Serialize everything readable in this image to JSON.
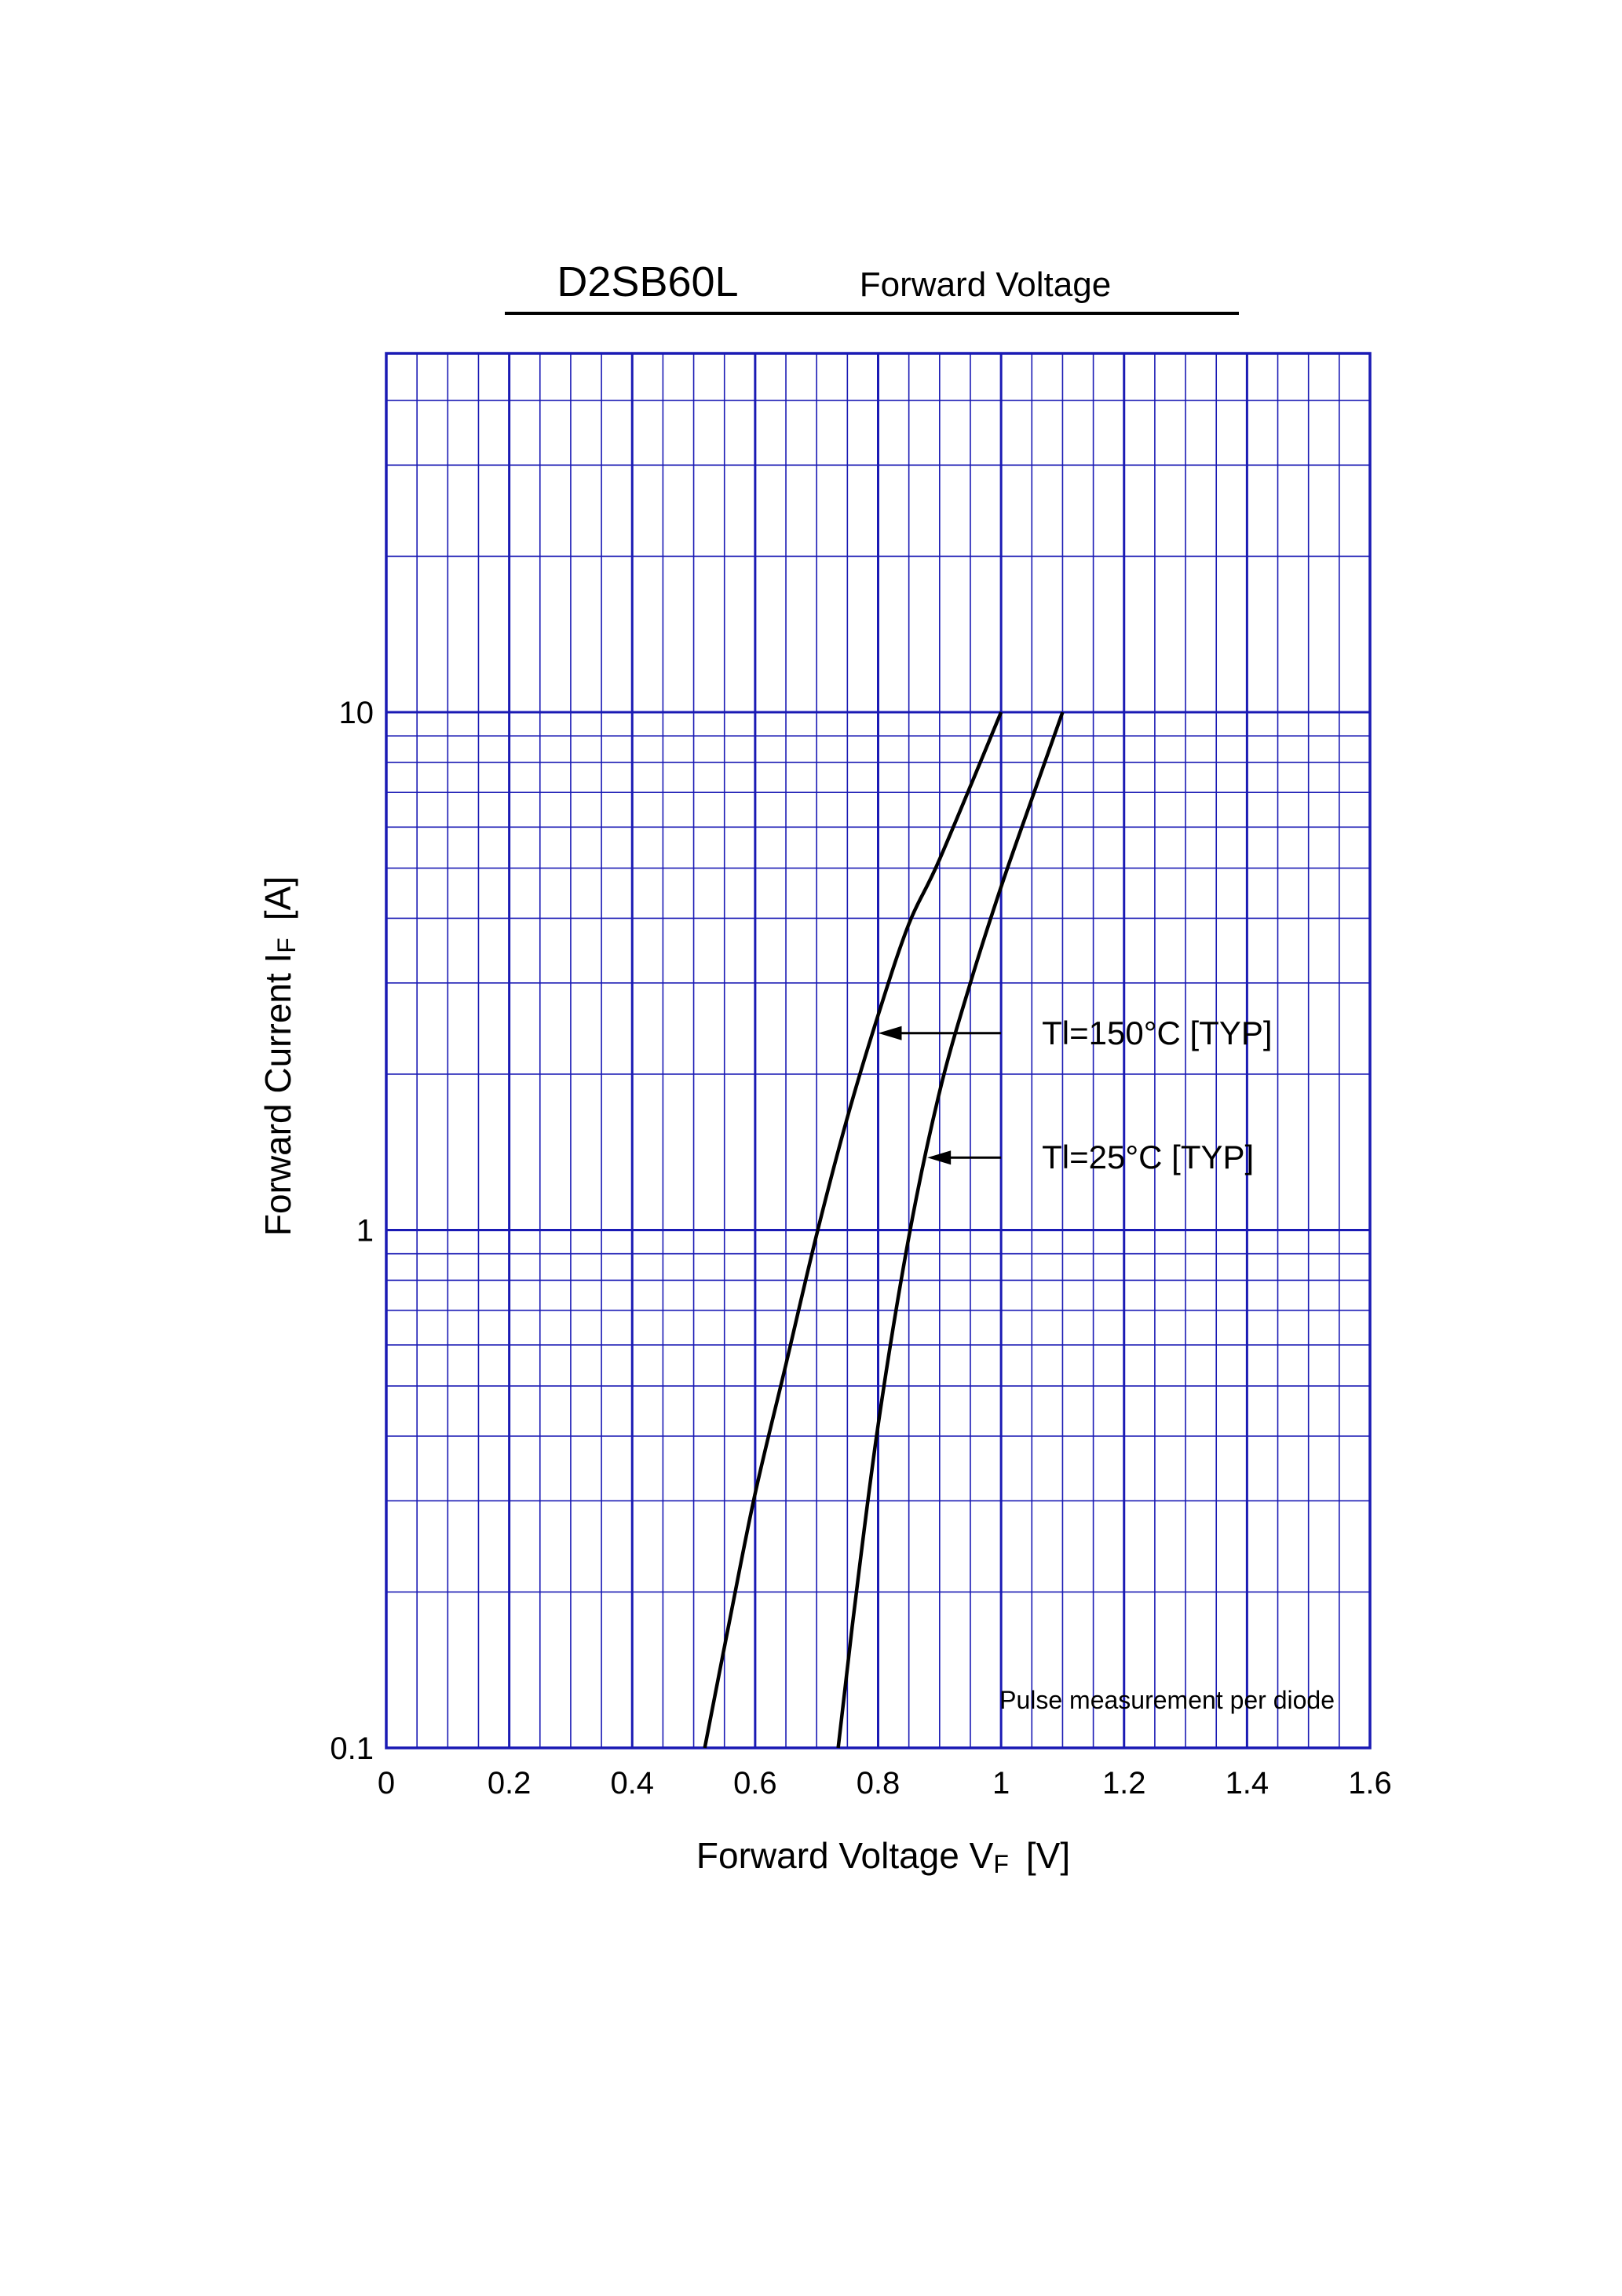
{
  "header": {
    "part_number": "D2SB60L",
    "chart_name": "Forward Voltage"
  },
  "chart_data": {
    "type": "line",
    "title": "Forward Voltage",
    "x_axis": {
      "label_main": "Forward Voltage  V",
      "label_sub": "F",
      "label_unit": "[V]",
      "range": [
        0,
        1.6
      ],
      "ticks": [
        0,
        0.2,
        0.4,
        0.6,
        0.8,
        1,
        1.2,
        1.4,
        1.6
      ],
      "tick_labels": [
        "0",
        "0.2",
        "0.4",
        "0.6",
        "0.8",
        "1",
        "1.2",
        "1.4",
        "1.6"
      ],
      "scale": "linear"
    },
    "y_axis": {
      "label_main": "Forward Current  I",
      "label_sub": "F",
      "label_unit": "[A]",
      "range": [
        0.1,
        40
      ],
      "ticks": [
        0.1,
        1,
        10
      ],
      "tick_labels": [
        "0.1",
        "1",
        "10"
      ],
      "scale": "log"
    },
    "grid": true,
    "series": [
      {
        "name": "Tl=150°C [TYP]",
        "x": [
          0.518,
          0.56,
          0.6,
          0.65,
          0.7,
          0.75,
          0.8,
          0.85,
          0.9,
          1.0
        ],
        "y": [
          0.1,
          0.18,
          0.31,
          0.55,
          0.98,
          1.65,
          2.6,
          3.9,
          5.2,
          10
        ]
      },
      {
        "name": "Tl=25°C [TYP]",
        "x": [
          0.735,
          0.76,
          0.8,
          0.85,
          0.9,
          0.95,
          1.0,
          1.05,
          1.1
        ],
        "y": [
          0.1,
          0.18,
          0.42,
          0.97,
          1.85,
          3.0,
          4.6,
          6.8,
          10
        ]
      }
    ],
    "annotations": [
      {
        "text": "Tl=150°C [TYP]",
        "arrow_to_x": 0.8,
        "arrow_to_y": 2.4,
        "text_x": 1.0,
        "text_y": 2.4
      },
      {
        "text": "Tl=25°C [TYP]",
        "arrow_to_x": 0.88,
        "arrow_to_y": 1.38,
        "text_x": 1.0,
        "text_y": 1.38
      }
    ],
    "note": "Pulse measurement per diode"
  },
  "colors": {
    "grid": "#1a1ab4",
    "curve": "#000000",
    "text": "#000000"
  }
}
